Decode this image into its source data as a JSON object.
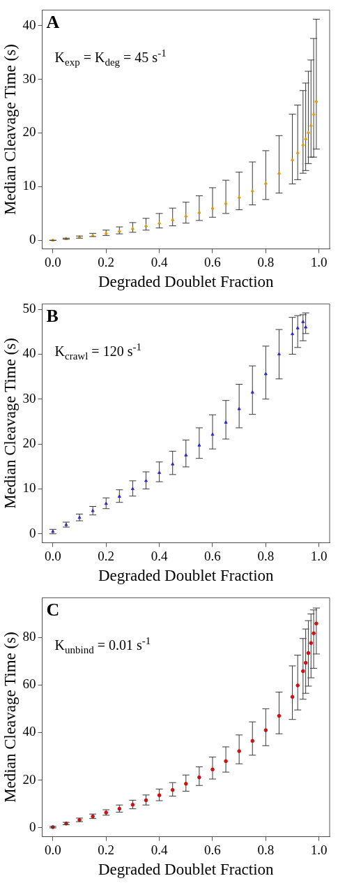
{
  "chart_data": [
    {
      "type": "scatter",
      "title": "A",
      "xlabel": "Degraded Doublet Fraction",
      "ylabel": "Median Cleavage Time (s)",
      "annotations": [
        "K$_{exp}$ = K$_{deg}$ = 45 s$^{-1}$"
      ],
      "marker": "triangle",
      "grid": false,
      "xlim": [
        -0.04,
        1.04
      ],
      "ylim": [
        -1.6,
        42.9
      ],
      "xticks": [
        {
          "value": 0,
          "label": "0.0"
        },
        {
          "value": 0.2,
          "label": "0.2"
        },
        {
          "value": 0.4,
          "label": "0.4"
        },
        {
          "value": 0.6,
          "label": "0.6"
        },
        {
          "value": 0.8,
          "label": "0.8"
        },
        {
          "value": 1,
          "label": "1.0"
        }
      ],
      "yticks": [
        0,
        10,
        20,
        30,
        40
      ],
      "x": [
        0,
        0.05,
        0.1,
        0.15,
        0.2,
        0.25,
        0.3,
        0.35,
        0.4,
        0.45,
        0.5,
        0.55,
        0.6,
        0.65,
        0.7,
        0.75,
        0.8,
        0.85,
        0.9,
        0.92,
        0.94,
        0.95,
        0.96,
        0.97,
        0.98,
        0.99
      ],
      "series": [
        {
          "color": "#e69a00",
          "values": [
            0,
            0.3,
            0.6,
            0.9,
            1.3,
            1.7,
            2.2,
            2.7,
            3.2,
            3.8,
            4.5,
            5.2,
            6.0,
            6.9,
            8.0,
            9.2,
            10.6,
            12.5,
            15.0,
            16.3,
            17.8,
            18.9,
            20.1,
            21.4,
            23.5,
            25.9
          ],
          "errors": [
            [
              0,
              0
            ],
            [
              0.2,
              0.4
            ],
            [
              0.4,
              0.8
            ],
            [
              0.7,
              1.3
            ],
            [
              0.9,
              1.9
            ],
            [
              1.2,
              2.5
            ],
            [
              1.5,
              3.3
            ],
            [
              1.9,
              4.1
            ],
            [
              2.3,
              5.0
            ],
            [
              2.7,
              6.0
            ],
            [
              3.2,
              7.1
            ],
            [
              3.7,
              8.3
            ],
            [
              4.3,
              9.8
            ],
            [
              5.0,
              11.2
            ],
            [
              5.7,
              12.7
            ],
            [
              6.6,
              14.6
            ],
            [
              7.6,
              16.7
            ],
            [
              8.8,
              19.5
            ],
            [
              10.5,
              23.5
            ],
            [
              11.3,
              25.2
            ],
            [
              12.5,
              27.9
            ],
            [
              13.0,
              29.3
            ],
            [
              14.3,
              31.5
            ],
            [
              15.5,
              33.6
            ],
            [
              15.5,
              37.6
            ],
            [
              17.0,
              41.2
            ]
          ]
        }
      ]
    },
    {
      "type": "scatter",
      "title": "B",
      "xlabel": "Degraded Doublet Fraction",
      "ylabel": "Median Cleavage Time (s)",
      "annotations": [
        "K$_{crawl}$ = 120 s$^{-1}$"
      ],
      "marker": "triangle",
      "grid": false,
      "xlim": [
        -0.04,
        1.04
      ],
      "ylim": [
        -2,
        51.2
      ],
      "xticks": [
        {
          "value": 0,
          "label": "0.0"
        },
        {
          "value": 0.2,
          "label": "0.2"
        },
        {
          "value": 0.4,
          "label": "0.4"
        },
        {
          "value": 0.6,
          "label": "0.6"
        },
        {
          "value": 0.8,
          "label": "0.8"
        },
        {
          "value": 1,
          "label": "1.0"
        }
      ],
      "yticks": [
        0,
        10,
        20,
        30,
        40,
        50
      ],
      "x": [
        0,
        0.05,
        0.1,
        0.15,
        0.2,
        0.25,
        0.3,
        0.35,
        0.4,
        0.45,
        0.5,
        0.55,
        0.6,
        0.65,
        0.7,
        0.75,
        0.8,
        0.85,
        0.9,
        0.92,
        0.94,
        0.95
      ],
      "series": [
        {
          "color": "#2a2ad0",
          "values": [
            0.5,
            2.0,
            3.6,
            5.1,
            6.7,
            8.3,
            10.0,
            11.8,
            13.6,
            15.5,
            17.5,
            19.7,
            22.1,
            24.8,
            27.8,
            31.5,
            35.6,
            40.0,
            44.5,
            45.8,
            47.2,
            46.0
          ],
          "errors": [
            [
              0,
              1
            ],
            [
              1.5,
              2.6
            ],
            [
              2.9,
              4.4
            ],
            [
              4.2,
              6.1
            ],
            [
              5.6,
              8.0
            ],
            [
              7.0,
              9.8
            ],
            [
              8.4,
              11.8
            ],
            [
              10.0,
              13.8
            ],
            [
              11.6,
              16.0
            ],
            [
              13.2,
              18.4
            ],
            [
              14.9,
              20.9
            ],
            [
              16.8,
              23.6
            ],
            [
              18.9,
              26.5
            ],
            [
              21.1,
              29.7
            ],
            [
              23.6,
              33.3
            ],
            [
              26.6,
              37.4
            ],
            [
              30.0,
              41.8
            ],
            [
              34.5,
              45.5
            ],
            [
              40.0,
              48.2
            ],
            [
              41.5,
              48.6
            ],
            [
              43.0,
              48.8
            ],
            [
              44.6,
              49.2
            ]
          ]
        }
      ]
    },
    {
      "type": "scatter",
      "title": "C",
      "xlabel": "Degraded Doublet Fraction",
      "ylabel": "Median Cleavage Time (s)",
      "annotations": [
        "K$_{unbind}$ = 0.01 s$^{-1}$"
      ],
      "marker": "circle",
      "grid": false,
      "xlim": [
        -0.04,
        1.04
      ],
      "ylim": [
        -3.7,
        96.6
      ],
      "xticks": [
        {
          "value": 0,
          "label": "0.0"
        },
        {
          "value": 0.2,
          "label": "0.2"
        },
        {
          "value": 0.4,
          "label": "0.4"
        },
        {
          "value": 0.6,
          "label": "0.6"
        },
        {
          "value": 0.8,
          "label": "0.8"
        },
        {
          "value": 1,
          "label": "1.0"
        }
      ],
      "yticks": [
        0,
        20,
        40,
        60,
        80
      ],
      "x": [
        0,
        0.05,
        0.1,
        0.15,
        0.2,
        0.25,
        0.3,
        0.35,
        0.4,
        0.45,
        0.5,
        0.55,
        0.6,
        0.65,
        0.7,
        0.75,
        0.8,
        0.85,
        0.9,
        0.92,
        0.94,
        0.95,
        0.96,
        0.97,
        0.98,
        0.99
      ],
      "series": [
        {
          "color": "#d01010",
          "values": [
            0.3,
            1.8,
            3.3,
            4.8,
            6.4,
            8.0,
            9.7,
            11.6,
            13.7,
            15.9,
            18.5,
            21.2,
            24.5,
            28.0,
            32.2,
            36.5,
            41.0,
            47.0,
            55.0,
            59.8,
            65.8,
            69.3,
            73.4,
            77.6,
            81.7,
            85.8
          ],
          "errors": [
            [
              0,
              0.6
            ],
            [
              1.3,
              2.3
            ],
            [
              2.6,
              4.1
            ],
            [
              3.9,
              5.8
            ],
            [
              5.3,
              7.6
            ],
            [
              6.6,
              9.6
            ],
            [
              8.0,
              11.6
            ],
            [
              9.6,
              13.8
            ],
            [
              11.4,
              16.3
            ],
            [
              13.3,
              19.0
            ],
            [
              15.4,
              22.2
            ],
            [
              17.8,
              25.6
            ],
            [
              20.5,
              29.7
            ],
            [
              23.4,
              34.0
            ],
            [
              26.9,
              39.0
            ],
            [
              30.5,
              44.5
            ],
            [
              34.5,
              50.0
            ],
            [
              39.5,
              57.0
            ],
            [
              45.5,
              68.0
            ],
            [
              49.5,
              72.5
            ],
            [
              54.0,
              79.5
            ],
            [
              56.5,
              83.5
            ],
            [
              59.5,
              87.0
            ],
            [
              63.0,
              89.8
            ],
            [
              67.0,
              91.5
            ],
            [
              73.0,
              92.3
            ]
          ]
        }
      ]
    }
  ]
}
